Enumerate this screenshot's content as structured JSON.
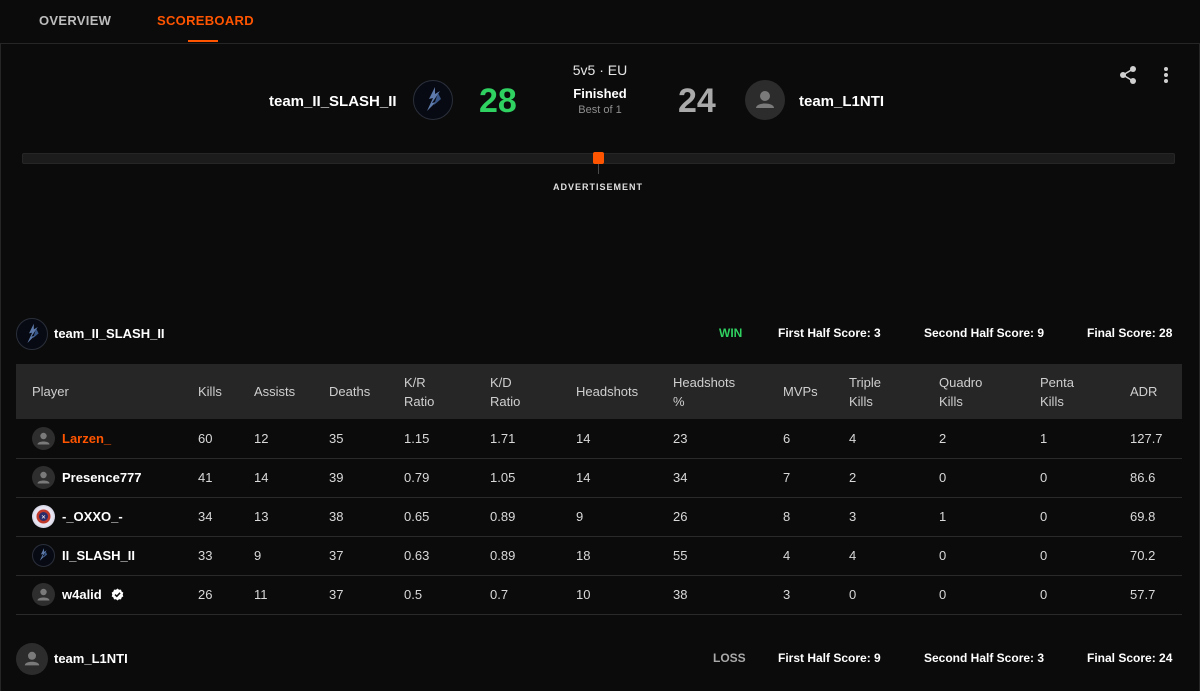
{
  "tabs": {
    "overview": "OVERVIEW",
    "scoreboard": "SCOREBOARD"
  },
  "match": {
    "mode": "5v5 · EU",
    "status": "Finished",
    "best_of": "Best of 1",
    "team1": {
      "name": "team_II_SLASH_II",
      "score": "28"
    },
    "team2": {
      "name": "team_L1NTI",
      "score": "24"
    },
    "advertisement": "ADVERTISEMENT"
  },
  "team1_summary": {
    "name": "team_II_SLASH_II",
    "result": "WIN",
    "first_half": "First Half Score: 3",
    "second_half": "Second Half Score: 9",
    "final": "Final Score: 28"
  },
  "team2_summary": {
    "name": "team_L1NTI",
    "result": "LOSS",
    "first_half": "First Half Score: 9",
    "second_half": "Second Half Score: 3",
    "final": "Final Score: 24"
  },
  "table": {
    "headers": {
      "player": "Player",
      "kills": "Kills",
      "assists": "Assists",
      "deaths": "Deaths",
      "kr_line1": "K/R",
      "kr_line2": "Ratio",
      "kd_line1": "K/D",
      "kd_line2": "Ratio",
      "headshots": "Headshots",
      "hs_pct_line1": "Headshots",
      "hs_pct_line2": "%",
      "mvps": "MVPs",
      "triple_line1": "Triple",
      "triple_line2": "Kills",
      "quadro_line1": "Quadro",
      "quadro_line2": "Kills",
      "penta_line1": "Penta",
      "penta_line2": "Kills",
      "adr": "ADR"
    },
    "rows": [
      {
        "player": "Larzen_",
        "kills": "60",
        "assists": "12",
        "deaths": "35",
        "kr": "1.15",
        "kd": "1.71",
        "hs": "14",
        "hs_pct": "23",
        "mvps": "6",
        "triple": "4",
        "quadro": "2",
        "penta": "1",
        "adr": "127.7"
      },
      {
        "player": "Presence777",
        "kills": "41",
        "assists": "14",
        "deaths": "39",
        "kr": "0.79",
        "kd": "1.05",
        "hs": "14",
        "hs_pct": "34",
        "mvps": "7",
        "triple": "2",
        "quadro": "0",
        "penta": "0",
        "adr": "86.6"
      },
      {
        "player": "-_OXXO_-",
        "kills": "34",
        "assists": "13",
        "deaths": "38",
        "kr": "0.65",
        "kd": "0.89",
        "hs": "9",
        "hs_pct": "26",
        "mvps": "8",
        "triple": "3",
        "quadro": "1",
        "penta": "0",
        "adr": "69.8"
      },
      {
        "player": "II_SLASH_II",
        "kills": "33",
        "assists": "9",
        "deaths": "37",
        "kr": "0.63",
        "kd": "0.89",
        "hs": "18",
        "hs_pct": "55",
        "mvps": "4",
        "triple": "4",
        "quadro": "0",
        "penta": "0",
        "adr": "70.2"
      },
      {
        "player": "w4alid",
        "kills": "26",
        "assists": "11",
        "deaths": "37",
        "kr": "0.5",
        "kd": "0.7",
        "hs": "10",
        "hs_pct": "38",
        "mvps": "3",
        "triple": "0",
        "quadro": "0",
        "penta": "0",
        "adr": "57.7"
      }
    ]
  },
  "colors": {
    "accent": "#ff5500",
    "win": "#2fd160",
    "loss": "#a9a9a9",
    "background": "#0b0b0b",
    "table_header": "#262626"
  },
  "icons": {
    "share": "share-icon",
    "more": "more-vertical-icon",
    "verified": "verified-badge-icon",
    "default_avatar": "person-icon"
  }
}
